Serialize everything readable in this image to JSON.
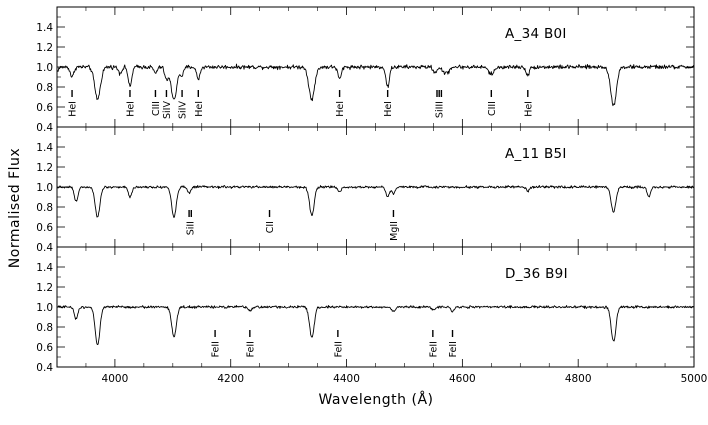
{
  "chart_data": {
    "type": "line",
    "xlabel": "Wavelength (Å)",
    "ylabel": "Normalised Flux",
    "xlim": [
      3900,
      5000
    ],
    "x_ticks": [
      4000,
      4200,
      4400,
      4600,
      4800,
      5000
    ],
    "ylim": [
      0.4,
      1.6
    ],
    "y_ticks": [
      0.4,
      0.6,
      0.8,
      1.0,
      1.2,
      1.4
    ],
    "grid": false,
    "panels": [
      {
        "name": "A_34  B0I",
        "continuum_noise": 0.02,
        "absorption_lines": [
          {
            "wavelength": 3889,
            "depth": 0.28,
            "width": 6
          },
          {
            "wavelength": 3926,
            "depth": 0.1,
            "width": 3
          },
          {
            "wavelength": 3970,
            "depth": 0.32,
            "width": 5
          },
          {
            "wavelength": 4009,
            "depth": 0.06,
            "width": 3
          },
          {
            "wavelength": 4026,
            "depth": 0.2,
            "width": 3
          },
          {
            "wavelength": 4070,
            "depth": 0.06,
            "width": 3
          },
          {
            "wavelength": 4089,
            "depth": 0.12,
            "width": 3
          },
          {
            "wavelength": 4102,
            "depth": 0.32,
            "width": 5
          },
          {
            "wavelength": 4116,
            "depth": 0.08,
            "width": 3
          },
          {
            "wavelength": 4144,
            "depth": 0.12,
            "width": 3
          },
          {
            "wavelength": 4340,
            "depth": 0.32,
            "width": 5
          },
          {
            "wavelength": 4388,
            "depth": 0.12,
            "width": 3
          },
          {
            "wavelength": 4471,
            "depth": 0.2,
            "width": 3
          },
          {
            "wavelength": 4553,
            "depth": 0.06,
            "width": 3
          },
          {
            "wavelength": 4568,
            "depth": 0.06,
            "width": 3
          },
          {
            "wavelength": 4575,
            "depth": 0.05,
            "width": 3
          },
          {
            "wavelength": 4650,
            "depth": 0.07,
            "width": 5
          },
          {
            "wavelength": 4713,
            "depth": 0.08,
            "width": 3
          },
          {
            "wavelength": 4861,
            "depth": 0.38,
            "width": 5
          }
        ],
        "line_ids": [
          {
            "wavelength": 3926,
            "label": "HeI",
            "marks": 1
          },
          {
            "wavelength": 4026,
            "label": "HeI",
            "marks": 1
          },
          {
            "wavelength": 4070,
            "label": "CIII",
            "marks": 1
          },
          {
            "wavelength": 4089,
            "label": "SiIV",
            "marks": 1
          },
          {
            "wavelength": 4116,
            "label": "SiIV",
            "marks": 1
          },
          {
            "wavelength": 4144,
            "label": "HeI",
            "marks": 1
          },
          {
            "wavelength": 4388,
            "label": "HeI",
            "marks": 1
          },
          {
            "wavelength": 4471,
            "label": "HeI",
            "marks": 1
          },
          {
            "wavelength": 4560,
            "label": "SiIII",
            "marks": 3
          },
          {
            "wavelength": 4650,
            "label": "CIII",
            "marks": 1
          },
          {
            "wavelength": 4713,
            "label": "HeI",
            "marks": 1
          }
        ]
      },
      {
        "name": "A_11  B5I",
        "continuum_noise": 0.012,
        "absorption_lines": [
          {
            "wavelength": 3889,
            "depth": 0.15,
            "width": 4
          },
          {
            "wavelength": 3933,
            "depth": 0.15,
            "width": 3
          },
          {
            "wavelength": 3970,
            "depth": 0.3,
            "width": 4
          },
          {
            "wavelength": 4026,
            "depth": 0.1,
            "width": 3
          },
          {
            "wavelength": 4102,
            "depth": 0.3,
            "width": 4
          },
          {
            "wavelength": 4128,
            "depth": 0.06,
            "width": 3
          },
          {
            "wavelength": 4340,
            "depth": 0.28,
            "width": 4
          },
          {
            "wavelength": 4388,
            "depth": 0.05,
            "width": 3
          },
          {
            "wavelength": 4471,
            "depth": 0.1,
            "width": 3
          },
          {
            "wavelength": 4481,
            "depth": 0.06,
            "width": 3
          },
          {
            "wavelength": 4713,
            "depth": 0.04,
            "width": 3
          },
          {
            "wavelength": 4861,
            "depth": 0.25,
            "width": 4
          },
          {
            "wavelength": 4922,
            "depth": 0.1,
            "width": 3
          }
        ],
        "line_ids": [
          {
            "wavelength": 4130,
            "label": "SiII",
            "marks": 2
          },
          {
            "wavelength": 4267,
            "label": "CII",
            "marks": 1
          },
          {
            "wavelength": 4481,
            "label": "MgII",
            "marks": 1
          }
        ]
      },
      {
        "name": "D_36  B9I",
        "continuum_noise": 0.012,
        "absorption_lines": [
          {
            "wavelength": 3889,
            "depth": 0.12,
            "width": 4
          },
          {
            "wavelength": 3933,
            "depth": 0.12,
            "width": 3
          },
          {
            "wavelength": 3970,
            "depth": 0.38,
            "width": 4
          },
          {
            "wavelength": 4102,
            "depth": 0.3,
            "width": 4
          },
          {
            "wavelength": 4233,
            "depth": 0.04,
            "width": 3
          },
          {
            "wavelength": 4340,
            "depth": 0.3,
            "width": 4
          },
          {
            "wavelength": 4481,
            "depth": 0.05,
            "width": 3
          },
          {
            "wavelength": 4550,
            "depth": 0.03,
            "width": 3
          },
          {
            "wavelength": 4583,
            "depth": 0.04,
            "width": 3
          },
          {
            "wavelength": 4861,
            "depth": 0.35,
            "width": 4
          }
        ],
        "line_ids": [
          {
            "wavelength": 4173,
            "label": "FeII",
            "marks": 1
          },
          {
            "wavelength": 4233,
            "label": "FeII",
            "marks": 1
          },
          {
            "wavelength": 4385,
            "label": "FeII",
            "marks": 1
          },
          {
            "wavelength": 4549,
            "label": "FeII",
            "marks": 1
          },
          {
            "wavelength": 4583,
            "label": "FeII",
            "marks": 1
          }
        ]
      }
    ]
  }
}
